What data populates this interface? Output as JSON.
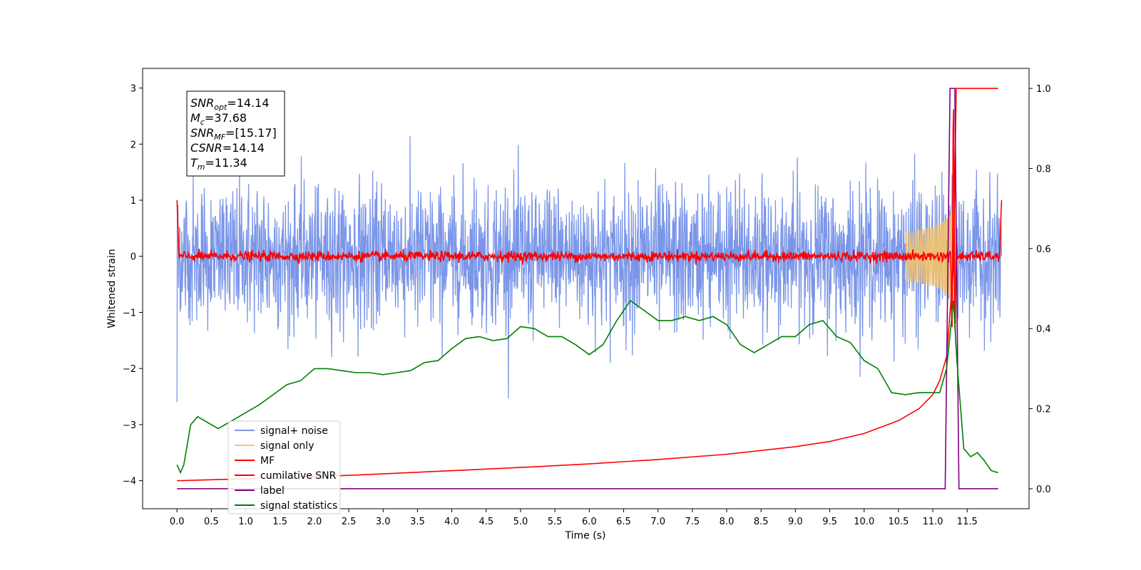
{
  "chart_data": {
    "type": "line",
    "xlabel": "Time (s)",
    "ylabel": "Whitened strain",
    "xlim": [
      -0.5,
      12.4
    ],
    "ylim": [
      -4.5,
      3.35
    ],
    "y2lim": [
      -0.05,
      1.05
    ],
    "xticks": [
      "0.0",
      "0.5",
      "1.0",
      "1.5",
      "2.0",
      "2.5",
      "3.0",
      "3.5",
      "4.0",
      "4.5",
      "5.0",
      "5.5",
      "6.0",
      "6.5",
      "7.0",
      "7.5",
      "8.0",
      "8.5",
      "9.0",
      "9.5",
      "10.0",
      "10.5",
      "11.0",
      "11.5"
    ],
    "yticks": [
      "3",
      "2",
      "1",
      "0",
      "−1",
      "−2",
      "−3",
      "−4"
    ],
    "y2ticks": [
      "1.0",
      "0.8",
      "0.6",
      "0.4",
      "0.2",
      "0.0"
    ],
    "grid": false,
    "legend_position": "lower-left",
    "stats_box": [
      {
        "sym": "SNR",
        "sub": "opt",
        "value": "=14.14"
      },
      {
        "sym": "M",
        "sub": "c",
        "value": "=37.68"
      },
      {
        "sym": "SNR",
        "sub": "MF",
        "value": "=[15.17]"
      },
      {
        "sym": "CSNR",
        "sub": "",
        "value": "=14.14"
      },
      {
        "sym": "T",
        "sub": "m",
        "value": "=11.34"
      }
    ],
    "series": [
      {
        "name": "signal+ noise",
        "color": "#7b96e8",
        "axis": "left",
        "kind": "noise",
        "envelope": 1.25,
        "x_range": [
          0,
          12
        ]
      },
      {
        "name": "signal only",
        "color": "#f5c36b",
        "axis": "left",
        "kind": "chirp",
        "merger_time": 11.34,
        "peak_amplitude": 1.8
      },
      {
        "name": "MF",
        "color": "#ff0000",
        "axis": "left",
        "kind": "mf",
        "start_value": 1.0,
        "end_value": 1.0,
        "peak_time": 11.3,
        "peak_value": 2.75
      },
      {
        "name": "cumilative SNR",
        "color": "#ff0000",
        "axis": "right",
        "x": [
          0,
          1,
          2,
          3,
          4,
          5,
          6,
          7,
          8,
          9,
          9.5,
          10,
          10.5,
          10.8,
          11.0,
          11.1,
          11.2,
          11.3,
          11.34,
          11.4,
          11.95
        ],
        "y": [
          0.02,
          0.025,
          0.03,
          0.037,
          0.045,
          0.053,
          0.062,
          0.073,
          0.086,
          0.105,
          0.118,
          0.138,
          0.17,
          0.2,
          0.235,
          0.27,
          0.33,
          0.55,
          1.0,
          1.0,
          1.0
        ]
      },
      {
        "name": "label",
        "color": "#800080",
        "axis": "right",
        "x": [
          0,
          11.18,
          11.25,
          11.32,
          11.38,
          11.95
        ],
        "y": [
          0.0,
          0.0,
          1.0,
          1.0,
          0.0,
          0.0
        ]
      },
      {
        "name": "signal statistics",
        "color": "#008000",
        "axis": "right",
        "x": [
          0,
          0.05,
          0.1,
          0.2,
          0.3,
          0.4,
          0.5,
          0.6,
          0.7,
          0.8,
          0.9,
          1.0,
          1.2,
          1.4,
          1.6,
          1.8,
          2.0,
          2.2,
          2.4,
          2.6,
          2.8,
          3.0,
          3.2,
          3.4,
          3.6,
          3.8,
          4.0,
          4.2,
          4.4,
          4.6,
          4.8,
          5.0,
          5.2,
          5.4,
          5.6,
          5.8,
          6.0,
          6.2,
          6.4,
          6.6,
          6.8,
          7.0,
          7.2,
          7.4,
          7.6,
          7.8,
          8.0,
          8.2,
          8.4,
          8.6,
          8.8,
          9.0,
          9.2,
          9.4,
          9.6,
          9.8,
          10.0,
          10.2,
          10.4,
          10.6,
          10.8,
          11.0,
          11.1,
          11.2,
          11.3,
          11.35,
          11.45,
          11.55,
          11.65,
          11.75,
          11.85,
          11.95
        ],
        "y": [
          0.06,
          0.04,
          0.06,
          0.16,
          0.18,
          0.17,
          0.16,
          0.15,
          0.16,
          0.17,
          0.18,
          0.19,
          0.21,
          0.235,
          0.26,
          0.27,
          0.3,
          0.3,
          0.295,
          0.29,
          0.29,
          0.285,
          0.29,
          0.295,
          0.315,
          0.32,
          0.35,
          0.375,
          0.38,
          0.37,
          0.375,
          0.405,
          0.4,
          0.38,
          0.38,
          0.36,
          0.335,
          0.36,
          0.42,
          0.47,
          0.445,
          0.42,
          0.42,
          0.43,
          0.42,
          0.43,
          0.41,
          0.36,
          0.34,
          0.36,
          0.38,
          0.38,
          0.41,
          0.42,
          0.38,
          0.365,
          0.32,
          0.3,
          0.24,
          0.235,
          0.24,
          0.24,
          0.24,
          0.3,
          0.47,
          0.32,
          0.1,
          0.08,
          0.09,
          0.07,
          0.045,
          0.04
        ]
      }
    ]
  }
}
